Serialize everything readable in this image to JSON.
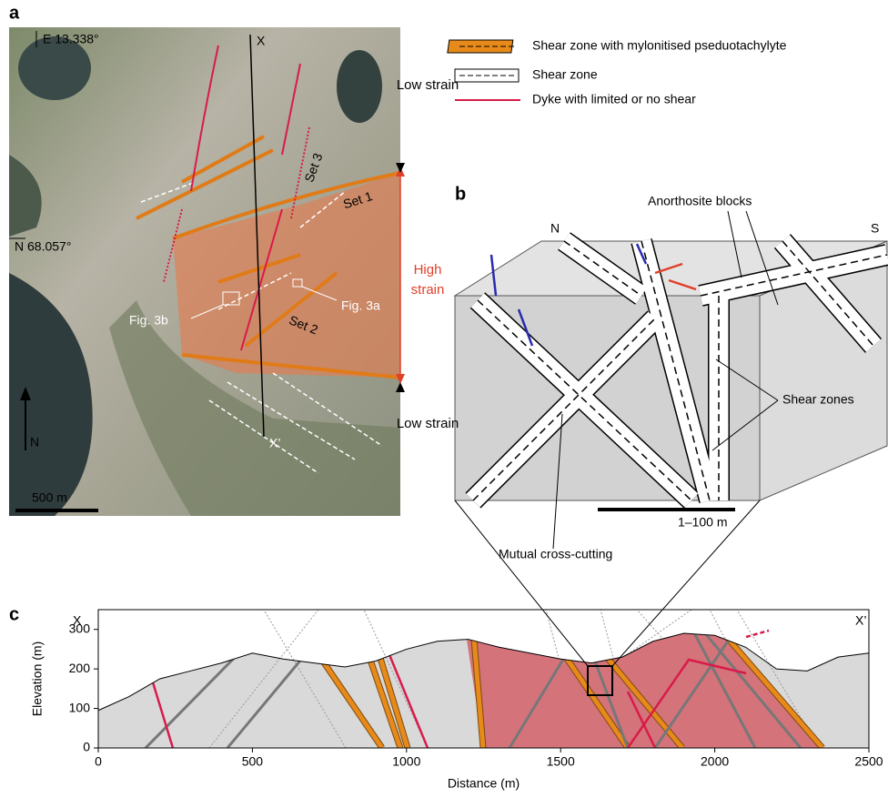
{
  "panel_a": {
    "label": "a",
    "longitude": "E 13.338°",
    "latitude": "N 68.057°",
    "section_start": "X",
    "section_end": "X’",
    "set_1": "Set 1",
    "set_2": "Set 2",
    "set_3": "Set 3",
    "fig_3a": "Fig. 3a",
    "fig_3b": "Fig. 3b",
    "north": "N",
    "scale_bar": "500 m",
    "strain_top": "Low strain",
    "strain_middle": "High strain",
    "strain_bottom": "Low strain"
  },
  "legend": [
    "Shear zone with mylonitised pseduotachylyte",
    "Shear zone",
    "Dyke with limited or no shear"
  ],
  "panel_b": {
    "label": "b",
    "north": "N",
    "south": "S",
    "blocks": "Anorthosite blocks",
    "shear_zones": "Shear zones",
    "scale_bar": "1–100 m",
    "cross_cutting": "Mutual cross-cutting"
  },
  "chart_data": {
    "type": "line",
    "panel_label": "c",
    "start_label": "X",
    "end_label": "X’",
    "xlabel": "Distance (m)",
    "ylabel": "Elevation (m)",
    "x": [
      0,
      100,
      200,
      300,
      400,
      500,
      600,
      700,
      800,
      900,
      1000,
      1100,
      1200,
      1300,
      1400,
      1500,
      1600,
      1700,
      1800,
      1900,
      2000,
      2100,
      2200,
      2300,
      2400,
      2500
    ],
    "values": [
      95,
      130,
      175,
      195,
      215,
      240,
      225,
      215,
      205,
      220,
      250,
      270,
      275,
      255,
      240,
      225,
      215,
      230,
      270,
      290,
      285,
      255,
      200,
      195,
      230,
      240
    ],
    "color": "#000000",
    "fill": "#d9d9d9",
    "xlim": [
      0,
      2500
    ],
    "ylim": [
      0,
      350
    ],
    "xticks": [
      0,
      500,
      1000,
      1500,
      2000,
      2500
    ],
    "yticks": [
      0,
      100,
      200,
      300
    ]
  }
}
